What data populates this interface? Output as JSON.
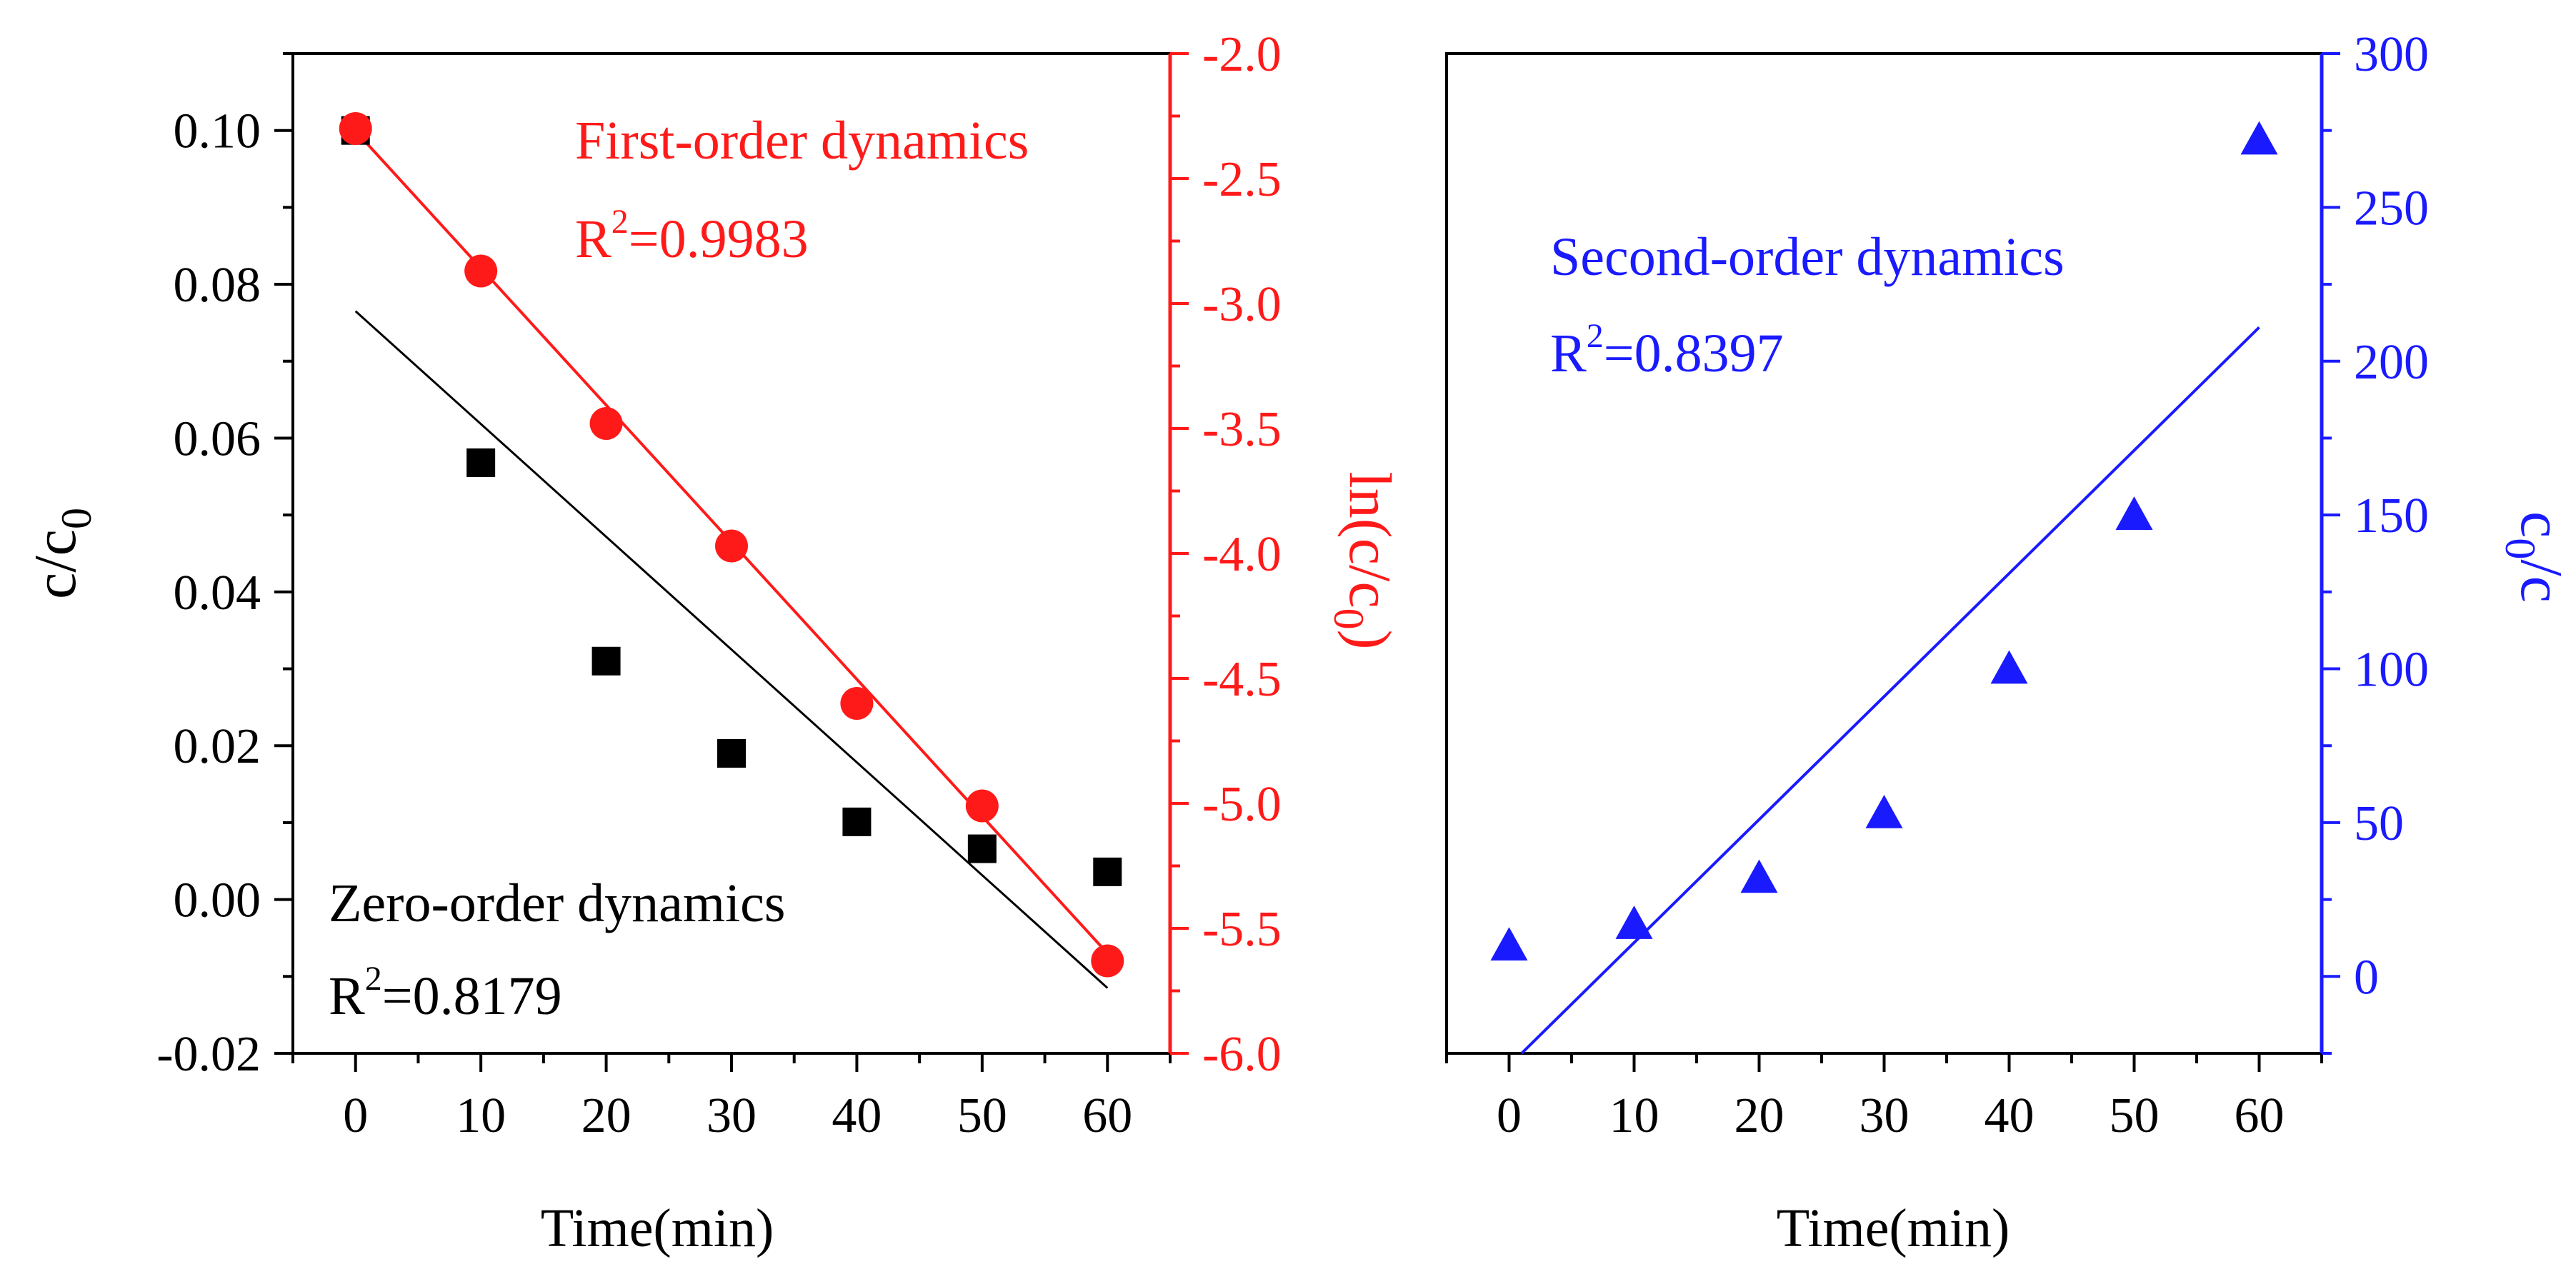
{
  "colors": {
    "zero": "#000000",
    "first": "#ff1a1a",
    "second": "#1a1aff",
    "axis": "#000000"
  },
  "chart_data": [
    {
      "type": "scatter",
      "title": "",
      "xlabel": "Time(min)",
      "xlim": [
        -5,
        65
      ],
      "xticks": [
        0,
        10,
        20,
        30,
        40,
        50,
        60
      ],
      "ylabel_left": "c/c",
      "ylabel_left_sub": "0",
      "ylim_left": [
        -0.02,
        0.11
      ],
      "yticks_left": [
        "0.10",
        "0.08",
        "0.06",
        "0.04",
        "0.02",
        "0.00",
        "-0.02"
      ],
      "ylabel_right": "ln(c/c",
      "ylabel_right_sub": "0",
      "ylabel_right_close": ")",
      "ylim_right": [
        -6.0,
        -2.0
      ],
      "yticks_right": [
        "-2.0",
        "-2.5",
        "-3.0",
        "-3.5",
        "-4.0",
        "-4.5",
        "-5.0",
        "-5.5",
        "-6.0"
      ],
      "series": [
        {
          "name": "Zero-order dynamics",
          "axis": "left",
          "marker": "square",
          "x": [
            0,
            10,
            20,
            30,
            40,
            50,
            60
          ],
          "values": [
            0.1,
            0.0568,
            0.031,
            0.019,
            0.0101,
            0.0066,
            0.0036
          ],
          "fit": {
            "x": [
              0,
              60
            ],
            "y": [
              0.0765,
              -0.0115
            ]
          },
          "label": "Zero-order dynamics",
          "r2_prefix": "R",
          "r2_sup": "2",
          "r2_value": "=0.8179"
        },
        {
          "name": "First-order dynamics",
          "axis": "right",
          "marker": "circle",
          "x": [
            0,
            10,
            20,
            30,
            40,
            50,
            60
          ],
          "values": [
            -2.3,
            -2.87,
            -3.48,
            -3.97,
            -4.6,
            -5.01,
            -5.63
          ],
          "fit": {
            "x": [
              0,
              60
            ],
            "y": [
              -2.31,
              -5.6
            ]
          },
          "label": "First-order dynamics",
          "r2_prefix": "R",
          "r2_sup": "2",
          "r2_value": "=0.9983"
        }
      ]
    },
    {
      "type": "scatter",
      "title": "",
      "xlabel": "Time(min)",
      "xlim": [
        -5,
        65
      ],
      "xticks": [
        0,
        10,
        20,
        30,
        40,
        50,
        60
      ],
      "ylabel_right": "c",
      "ylabel_right_sub": "0",
      "ylabel_right_close": "/c",
      "ylim_right": [
        -25,
        300
      ],
      "yticks_right": [
        "300",
        "250",
        "200",
        "150",
        "100",
        "50",
        "0"
      ],
      "series": [
        {
          "name": "Second-order dynamics",
          "axis": "right",
          "marker": "triangle",
          "x": [
            0,
            10,
            20,
            30,
            40,
            50,
            60
          ],
          "values": [
            10,
            17,
            32,
            53,
            100,
            150,
            272
          ],
          "fit": {
            "x": [
              1,
              60
            ],
            "y": [
              -25,
              211
            ]
          },
          "label": "Second-order dynamics",
          "r2_prefix": "R",
          "r2_sup": "2",
          "r2_value": "=0.8397"
        }
      ]
    }
  ]
}
